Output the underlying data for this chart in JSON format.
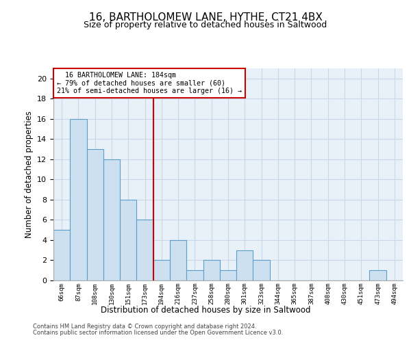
{
  "title": "16, BARTHOLOMEW LANE, HYTHE, CT21 4BX",
  "subtitle": "Size of property relative to detached houses in Saltwood",
  "xlabel": "Distribution of detached houses by size in Saltwood",
  "ylabel": "Number of detached properties",
  "bar_labels": [
    "66sqm",
    "87sqm",
    "108sqm",
    "130sqm",
    "151sqm",
    "173sqm",
    "194sqm",
    "216sqm",
    "237sqm",
    "258sqm",
    "280sqm",
    "301sqm",
    "323sqm",
    "344sqm",
    "365sqm",
    "387sqm",
    "408sqm",
    "430sqm",
    "451sqm",
    "473sqm",
    "494sqm"
  ],
  "bar_values": [
    5,
    16,
    13,
    12,
    8,
    6,
    2,
    4,
    1,
    2,
    1,
    3,
    2,
    0,
    0,
    0,
    0,
    0,
    0,
    1,
    0
  ],
  "bar_color": "#cce0f0",
  "bar_edge_color": "#5a9ec9",
  "reference_line_x": 5.5,
  "reference_line_label": "16 BARTHOLOMEW LANE: 184sqm",
  "pct_smaller": "79% of detached houses are smaller (60)",
  "pct_larger": "21% of semi-detached houses are larger (16)",
  "ylim": [
    0,
    21
  ],
  "yticks": [
    0,
    2,
    4,
    6,
    8,
    10,
    12,
    14,
    16,
    18,
    20
  ],
  "annotation_box_color": "#cc0000",
  "ax_bg_color": "#e8f0f8",
  "grid_color": "#c8d8e8",
  "footer1": "Contains HM Land Registry data © Crown copyright and database right 2024.",
  "footer2": "Contains public sector information licensed under the Open Government Licence v3.0."
}
